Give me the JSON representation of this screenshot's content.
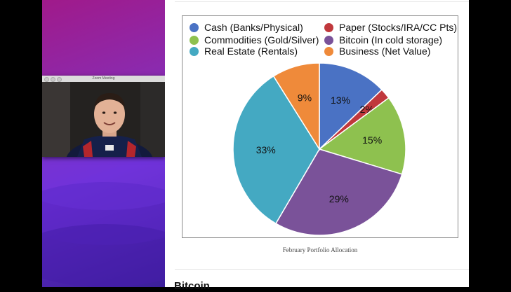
{
  "zoom": {
    "window_title": "Zoom Meeting"
  },
  "chart_data": {
    "type": "pie",
    "caption": "February Portfolio Allocation",
    "slices": [
      {
        "label": "Cash (Banks/Physical)",
        "value": 13,
        "display": "13%",
        "color": "#4a72c4"
      },
      {
        "label": "Paper (Stocks/IRA/CC Pts)",
        "value": 2,
        "display": "2%",
        "color": "#c0383c"
      },
      {
        "label": "Commodities (Gold/Silver)",
        "value": 15,
        "display": "15%",
        "color": "#8ec14f"
      },
      {
        "label": "Bitcoin (In cold storage)",
        "value": 29,
        "display": "29%",
        "color": "#7a5299"
      },
      {
        "label": "Real Estate (Rentals)",
        "value": 33,
        "display": "33%",
        "color": "#44a9c2"
      },
      {
        "label": "Business (Net Value)",
        "value": 9,
        "display": "9%",
        "color": "#ef8a3a"
      }
    ]
  },
  "legend": [
    {
      "label": "Cash (Banks/Physical)",
      "color": "#4a72c4"
    },
    {
      "label": "Paper (Stocks/IRA/CC Pts)",
      "color": "#c0383c"
    },
    {
      "label": "Commodities (Gold/Silver)",
      "color": "#8ec14f"
    },
    {
      "label": "Bitcoin (In cold storage)",
      "color": "#7a5299"
    },
    {
      "label": "Real Estate (Rentals)",
      "color": "#44a9c2"
    },
    {
      "label": "Business (Net Value)",
      "color": "#ef8a3a"
    }
  ],
  "article": {
    "next_heading": "Bitcoin"
  }
}
